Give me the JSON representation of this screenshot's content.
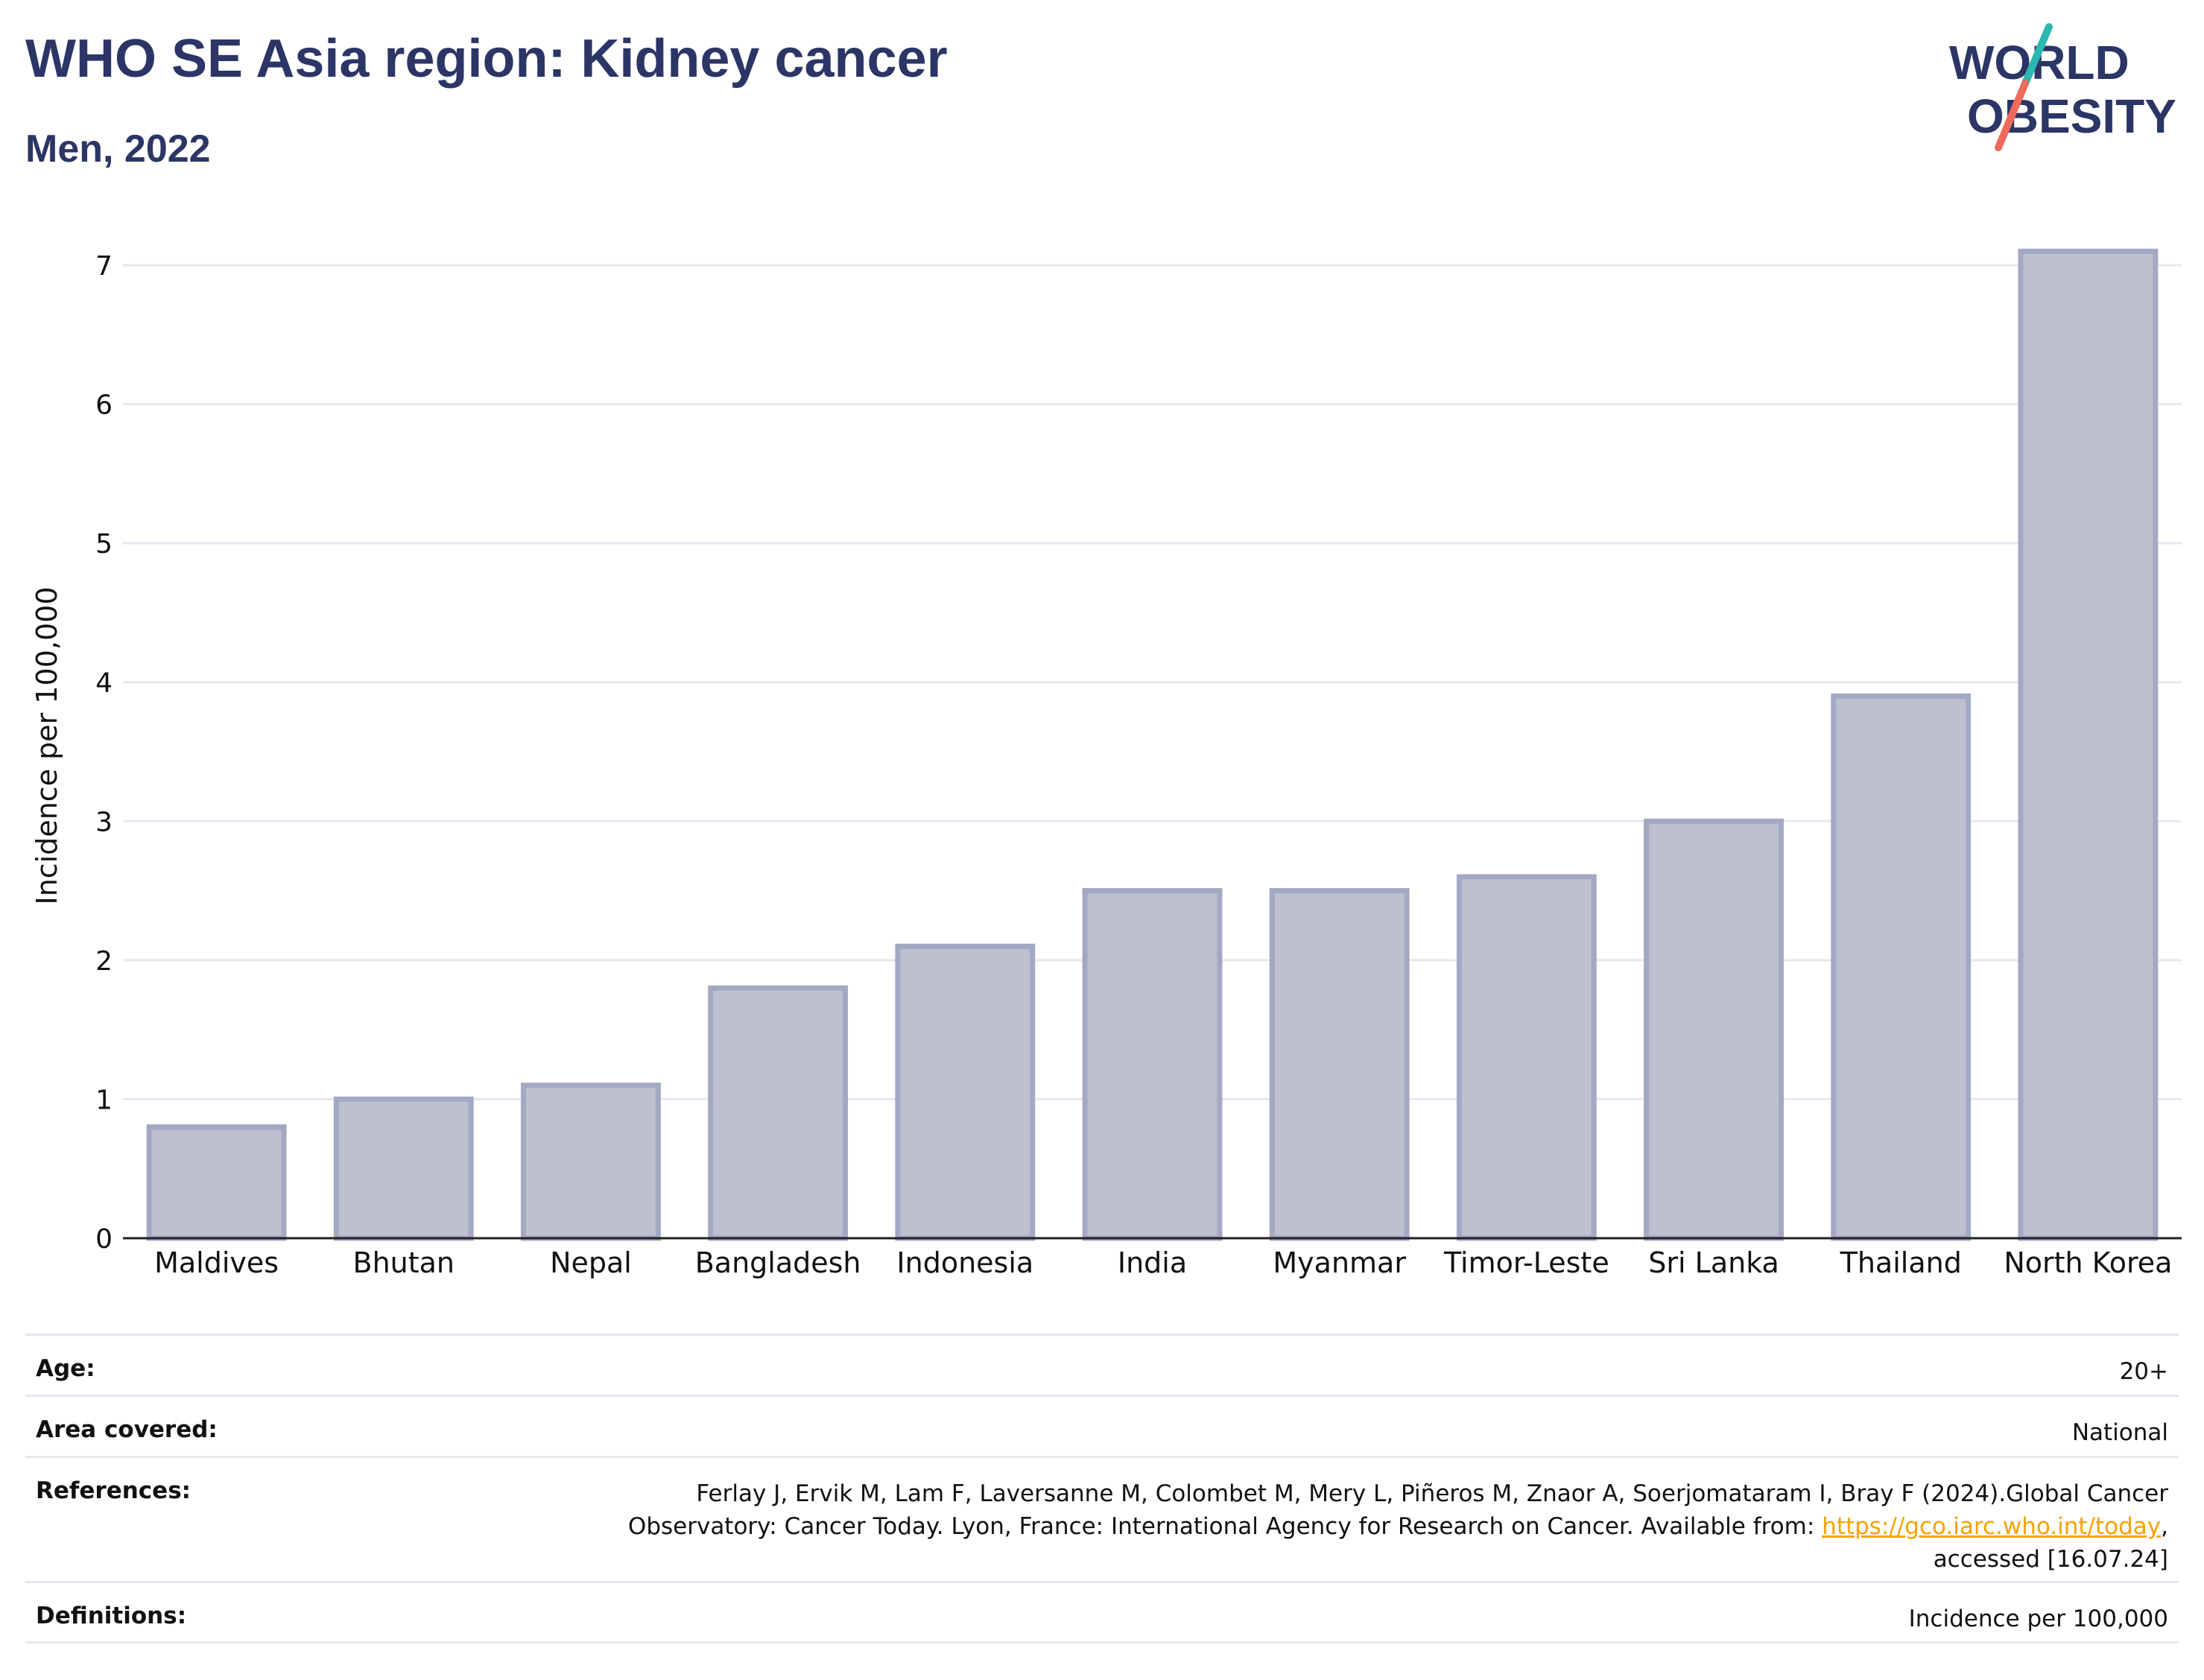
{
  "header": {
    "title": "WHO SE Asia region: Kidney cancer",
    "subtitle": "Men, 2022"
  },
  "logo": {
    "line1": "WORLD",
    "line2": "OBESITY",
    "colors": {
      "text": "#2b3566",
      "slash_top": "#2bb8b0",
      "slash_bottom": "#ef6a5a"
    }
  },
  "chart_data": {
    "type": "bar",
    "categories": [
      "Maldives",
      "Bhutan",
      "Nepal",
      "Bangladesh",
      "Indonesia",
      "India",
      "Myanmar",
      "Timor-Leste",
      "Sri Lanka",
      "Thailand",
      "North Korea"
    ],
    "values": [
      0.8,
      1.0,
      1.1,
      1.8,
      2.1,
      2.5,
      2.5,
      2.6,
      3.0,
      3.9,
      7.1
    ],
    "ylabel": "Incidence per 100,000",
    "ylim": [
      0,
      7.3
    ],
    "yticks": [
      0,
      1,
      2,
      3,
      4,
      5,
      6,
      7
    ],
    "grid": true,
    "colors": {
      "bar_fill": "#bcc0cf",
      "bar_stroke": "#a3a8c3",
      "grid": "#e6e8f0",
      "axis": "#222222"
    }
  },
  "meta": {
    "age_label": "Age:",
    "age_value": "20+",
    "area_label": "Area covered:",
    "area_value": "National",
    "references_label": "References:",
    "references_line1": "Ferlay J, Ervik M, Lam F, Laversanne M, Colombet M, Mery L, Piñeros M, Znaor A, Soerjomataram I, Bray F (2024).Global Cancer",
    "references_line2_prefix": "Observatory: Cancer Today. Lyon, France: International Agency for Research on Cancer. Available from: ",
    "references_link": "https://gco.iarc.who.int/today",
    "references_line2_suffix": ",",
    "references_line3": "accessed [16.07.24]",
    "definitions_label": "Definitions:",
    "definitions_value": "Incidence per 100,000"
  }
}
